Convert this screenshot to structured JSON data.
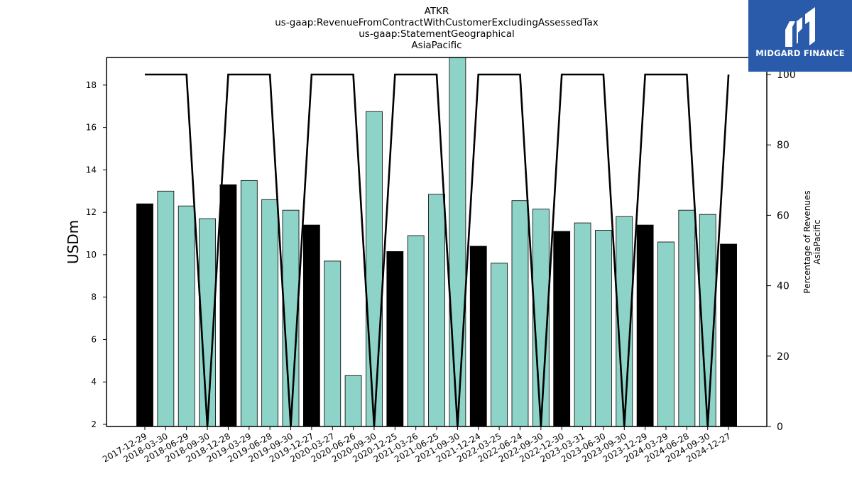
{
  "title": {
    "line1": "ATKR",
    "line2": "us-gaap:RevenueFromContractWithCustomerExcludingAssessedTax",
    "line3": "us-gaap:StatementGeographical",
    "line4": "AsiaPacific"
  },
  "logo": {
    "text": "MIDGARD FINANCE",
    "bg_color": "#2a5bab"
  },
  "chart_data": {
    "type": "bar",
    "title": "ATKR us-gaap:RevenueFromContractWithCustomerExcludingAssessedTax us-gaap:StatementGeographical AsiaPacific",
    "ylabel": "USDm",
    "y2label_line1": "Percentage of Revenues",
    "y2label_line2": "AsiaPacific",
    "ylim": [
      1.9,
      19.3
    ],
    "y2lim": [
      0,
      100.0
    ],
    "y_ticks": [
      2,
      4,
      6,
      8,
      10,
      12,
      14,
      16,
      18
    ],
    "y2_ticks": [
      0,
      20,
      40,
      60,
      80,
      100
    ],
    "categories": [
      "2017-12-29",
      "2018-03-30",
      "2018-06-29",
      "2018-09-30",
      "2018-12-28",
      "2019-03-29",
      "2019-06-28",
      "2019-09-30",
      "2019-12-27",
      "2020-03-27",
      "2020-06-26",
      "2020-09-30",
      "2020-12-25",
      "2021-03-26",
      "2021-06-25",
      "2021-09-30",
      "2021-12-24",
      "2022-03-25",
      "2022-06-24",
      "2022-09-30",
      "2022-12-30",
      "2023-03-31",
      "2023-06-30",
      "2023-09-30",
      "2023-12-29",
      "2024-03-29",
      "2024-06-28",
      "2024-09-30",
      "2024-12-27"
    ],
    "values": [
      12.4,
      13.0,
      12.3,
      11.7,
      13.3,
      13.5,
      12.6,
      12.1,
      11.4,
      9.7,
      4.3,
      16.75,
      10.15,
      10.9,
      12.85,
      19.3,
      10.4,
      9.6,
      12.55,
      12.15,
      11.1,
      11.5,
      11.15,
      11.8,
      11.4,
      10.6,
      12.1,
      11.9,
      10.5
    ],
    "highlight": [
      true,
      false,
      false,
      false,
      true,
      false,
      false,
      false,
      true,
      false,
      false,
      false,
      true,
      false,
      false,
      false,
      true,
      false,
      false,
      false,
      true,
      false,
      false,
      false,
      true,
      false,
      false,
      false,
      true
    ],
    "line_values": [
      100,
      100,
      100,
      0,
      100,
      100,
      100,
      0,
      100,
      100,
      100,
      0,
      100,
      100,
      100,
      0,
      100,
      100,
      100,
      0,
      100,
      100,
      100,
      0,
      100,
      100,
      100,
      0,
      100
    ],
    "colors": {
      "bar": "#8dd3c7",
      "highlight_bar": "#000000",
      "line": "#000000",
      "edge": "#000000"
    }
  }
}
